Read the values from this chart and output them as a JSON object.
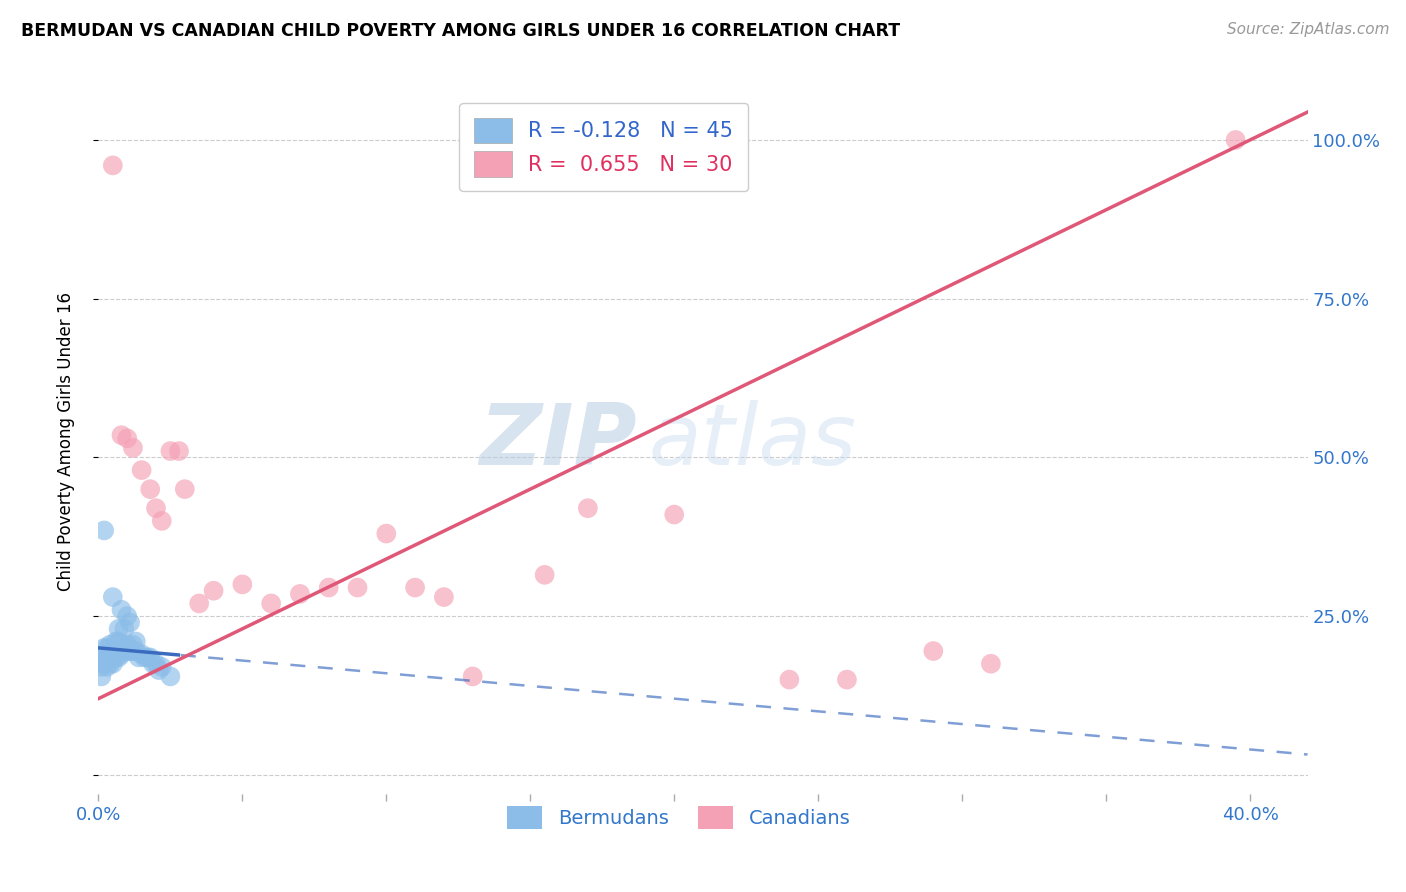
{
  "title": "BERMUDAN VS CANADIAN CHILD POVERTY AMONG GIRLS UNDER 16 CORRELATION CHART",
  "source": "Source: ZipAtlas.com",
  "ylabel": "Child Poverty Among Girls Under 16",
  "xlim": [
    0.0,
    0.42
  ],
  "ylim": [
    -0.03,
    1.08
  ],
  "xtick_positions": [
    0.0,
    0.05,
    0.1,
    0.15,
    0.2,
    0.25,
    0.3,
    0.35,
    0.4
  ],
  "xtick_labels": [
    "0.0%",
    "",
    "",
    "",
    "",
    "",
    "",
    "",
    "40.0%"
  ],
  "ytick_positions": [
    0.0,
    0.25,
    0.5,
    0.75,
    1.0
  ],
  "ytick_labels_right": [
    "",
    "25.0%",
    "50.0%",
    "75.0%",
    "100.0%"
  ],
  "legend_r_blue": "-0.128",
  "legend_n_blue": "45",
  "legend_r_pink": "0.655",
  "legend_n_pink": "30",
  "watermark_zip": "ZIP",
  "watermark_atlas": "atlas",
  "blue_color": "#8bbde8",
  "pink_color": "#f4a0b5",
  "blue_line_color": "#3b6bbf",
  "pink_line_color": "#e05878",
  "bermudan_x": [
    0.001,
    0.001,
    0.002,
    0.002,
    0.002,
    0.003,
    0.003,
    0.003,
    0.003,
    0.004,
    0.004,
    0.004,
    0.005,
    0.005,
    0.005,
    0.006,
    0.006,
    0.006,
    0.007,
    0.007,
    0.007,
    0.008,
    0.008,
    0.009,
    0.009,
    0.01,
    0.01,
    0.01,
    0.011,
    0.011,
    0.012,
    0.012,
    0.013,
    0.013,
    0.014,
    0.015,
    0.016,
    0.017,
    0.018,
    0.019,
    0.02,
    0.021,
    0.022,
    0.025,
    0.002
  ],
  "bermudan_y": [
    0.155,
    0.17,
    0.175,
    0.185,
    0.2,
    0.17,
    0.18,
    0.185,
    0.2,
    0.175,
    0.19,
    0.205,
    0.175,
    0.195,
    0.28,
    0.185,
    0.195,
    0.21,
    0.185,
    0.21,
    0.23,
    0.19,
    0.26,
    0.2,
    0.23,
    0.195,
    0.205,
    0.25,
    0.195,
    0.24,
    0.195,
    0.205,
    0.195,
    0.21,
    0.185,
    0.19,
    0.185,
    0.185,
    0.185,
    0.175,
    0.175,
    0.165,
    0.17,
    0.155,
    0.385
  ],
  "canadian_x": [
    0.005,
    0.008,
    0.01,
    0.012,
    0.015,
    0.018,
    0.02,
    0.022,
    0.025,
    0.028,
    0.03,
    0.035,
    0.04,
    0.05,
    0.06,
    0.07,
    0.08,
    0.09,
    0.1,
    0.11,
    0.12,
    0.13,
    0.155,
    0.17,
    0.2,
    0.24,
    0.26,
    0.29,
    0.31,
    0.395
  ],
  "canadian_y": [
    0.96,
    0.535,
    0.53,
    0.515,
    0.48,
    0.45,
    0.42,
    0.4,
    0.51,
    0.51,
    0.45,
    0.27,
    0.29,
    0.3,
    0.27,
    0.285,
    0.295,
    0.295,
    0.38,
    0.295,
    0.28,
    0.155,
    0.315,
    0.42,
    0.41,
    0.15,
    0.15,
    0.195,
    0.175,
    1.0
  ]
}
